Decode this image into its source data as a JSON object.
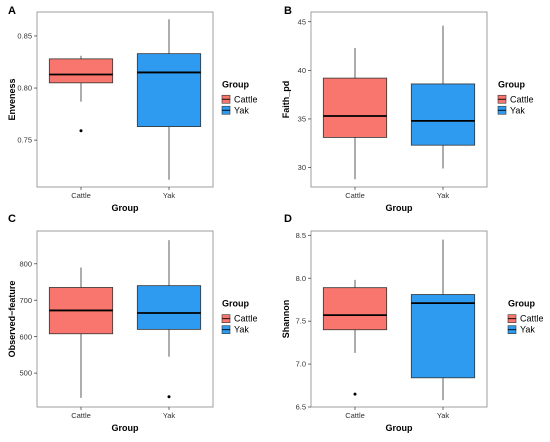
{
  "chart_data": [
    {
      "type": "box",
      "panel_label": "A",
      "xlabel": "Group",
      "ylabel": "Enveness",
      "ylim": [
        0.705,
        0.873
      ],
      "yticks": [
        0.75,
        0.8,
        0.85
      ],
      "ytick_labels": [
        "0.75",
        "0.80",
        "0.85"
      ],
      "categories": [
        "Cattle",
        "Yak"
      ],
      "boxes": [
        {
          "group": "Cattle",
          "whisker_low": 0.787,
          "q1": 0.805,
          "median": 0.813,
          "q3": 0.828,
          "whisker_high": 0.831,
          "outliers": [
            0.759
          ]
        },
        {
          "group": "Yak",
          "whisker_low": 0.712,
          "q1": 0.763,
          "median": 0.815,
          "q3": 0.833,
          "whisker_high": 0.866,
          "outliers": []
        }
      ],
      "legend": {
        "title": "Group",
        "position": "right"
      }
    },
    {
      "type": "box",
      "panel_label": "B",
      "xlabel": "Group",
      "ylabel": "Faith_pd",
      "ylim": [
        28,
        46
      ],
      "yticks": [
        30,
        35,
        40,
        45
      ],
      "ytick_labels": [
        "30",
        "35",
        "40",
        "45"
      ],
      "categories": [
        "Cattle",
        "Yak"
      ],
      "boxes": [
        {
          "group": "Cattle",
          "whisker_low": 28.8,
          "q1": 33.1,
          "median": 35.3,
          "q3": 39.2,
          "whisker_high": 42.3,
          "outliers": []
        },
        {
          "group": "Yak",
          "whisker_low": 29.9,
          "q1": 32.3,
          "median": 34.8,
          "q3": 38.6,
          "whisker_high": 44.6,
          "outliers": []
        }
      ],
      "legend": {
        "title": "Group",
        "position": "right"
      }
    },
    {
      "type": "box",
      "panel_label": "C",
      "xlabel": "Group",
      "ylabel": "Observed−feature",
      "ylim": [
        407,
        890
      ],
      "yticks": [
        500,
        600,
        700,
        800
      ],
      "ytick_labels": [
        "500",
        "600",
        "700",
        "800"
      ],
      "categories": [
        "Cattle",
        "Yak"
      ],
      "boxes": [
        {
          "group": "Cattle",
          "whisker_low": 432,
          "q1": 608,
          "median": 672,
          "q3": 735,
          "whisker_high": 790,
          "outliers": []
        },
        {
          "group": "Yak",
          "whisker_low": 545,
          "q1": 620,
          "median": 665,
          "q3": 740,
          "whisker_high": 865,
          "outliers": [
            435
          ]
        }
      ],
      "legend": {
        "title": "Group",
        "position": "right"
      }
    },
    {
      "type": "box",
      "panel_label": "D",
      "xlabel": "Group",
      "ylabel": "Shannon",
      "ylim": [
        6.5,
        8.55
      ],
      "yticks": [
        6.5,
        7.0,
        7.5,
        8.0,
        8.5
      ],
      "ytick_labels": [
        "6.5",
        "7.0",
        "7.5",
        "8.0",
        "8.5"
      ],
      "categories": [
        "Cattle",
        "Yak"
      ],
      "boxes": [
        {
          "group": "Cattle",
          "whisker_low": 7.13,
          "q1": 7.4,
          "median": 7.57,
          "q3": 7.89,
          "whisker_high": 7.98,
          "outliers": [
            6.65
          ]
        },
        {
          "group": "Yak",
          "whisker_low": 6.58,
          "q1": 6.84,
          "median": 7.71,
          "q3": 7.81,
          "whisker_high": 8.45,
          "outliers": []
        }
      ],
      "legend": {
        "title": "Group",
        "position": "right"
      }
    }
  ],
  "legend_items": [
    {
      "label": "Cattle",
      "color": "#F8766D"
    },
    {
      "label": "Yak",
      "color": "#2E9BF0"
    }
  ],
  "colors": {
    "Cattle": "#F8766D",
    "Yak": "#2E9BF0",
    "panel_border": "#888888",
    "grid": "#ffffff"
  }
}
